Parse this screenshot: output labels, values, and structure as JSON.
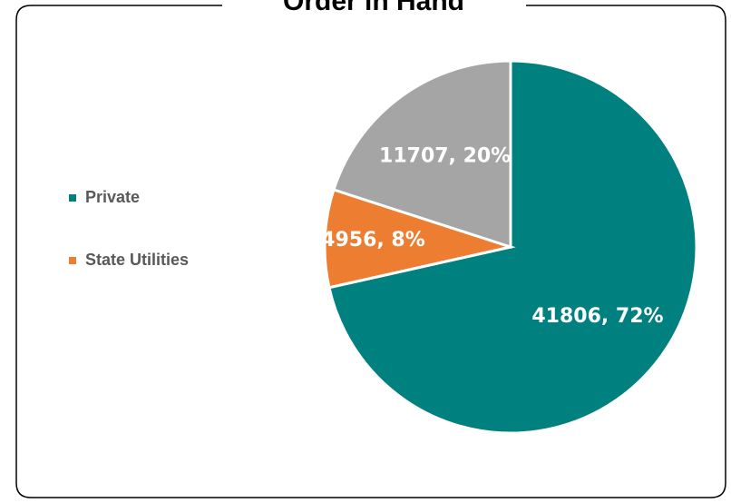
{
  "chart_data": {
    "type": "pie",
    "title": "Order in Hand",
    "categories": [
      "Private",
      "State Utilities",
      null
    ],
    "values": [
      41806,
      4956,
      11707
    ],
    "value_labels": [
      "41806, 72%",
      "4956, 8%",
      "11707, 20%"
    ],
    "colors": [
      "#00807f",
      "#ed7d31",
      "#a5a5a5"
    ]
  }
}
